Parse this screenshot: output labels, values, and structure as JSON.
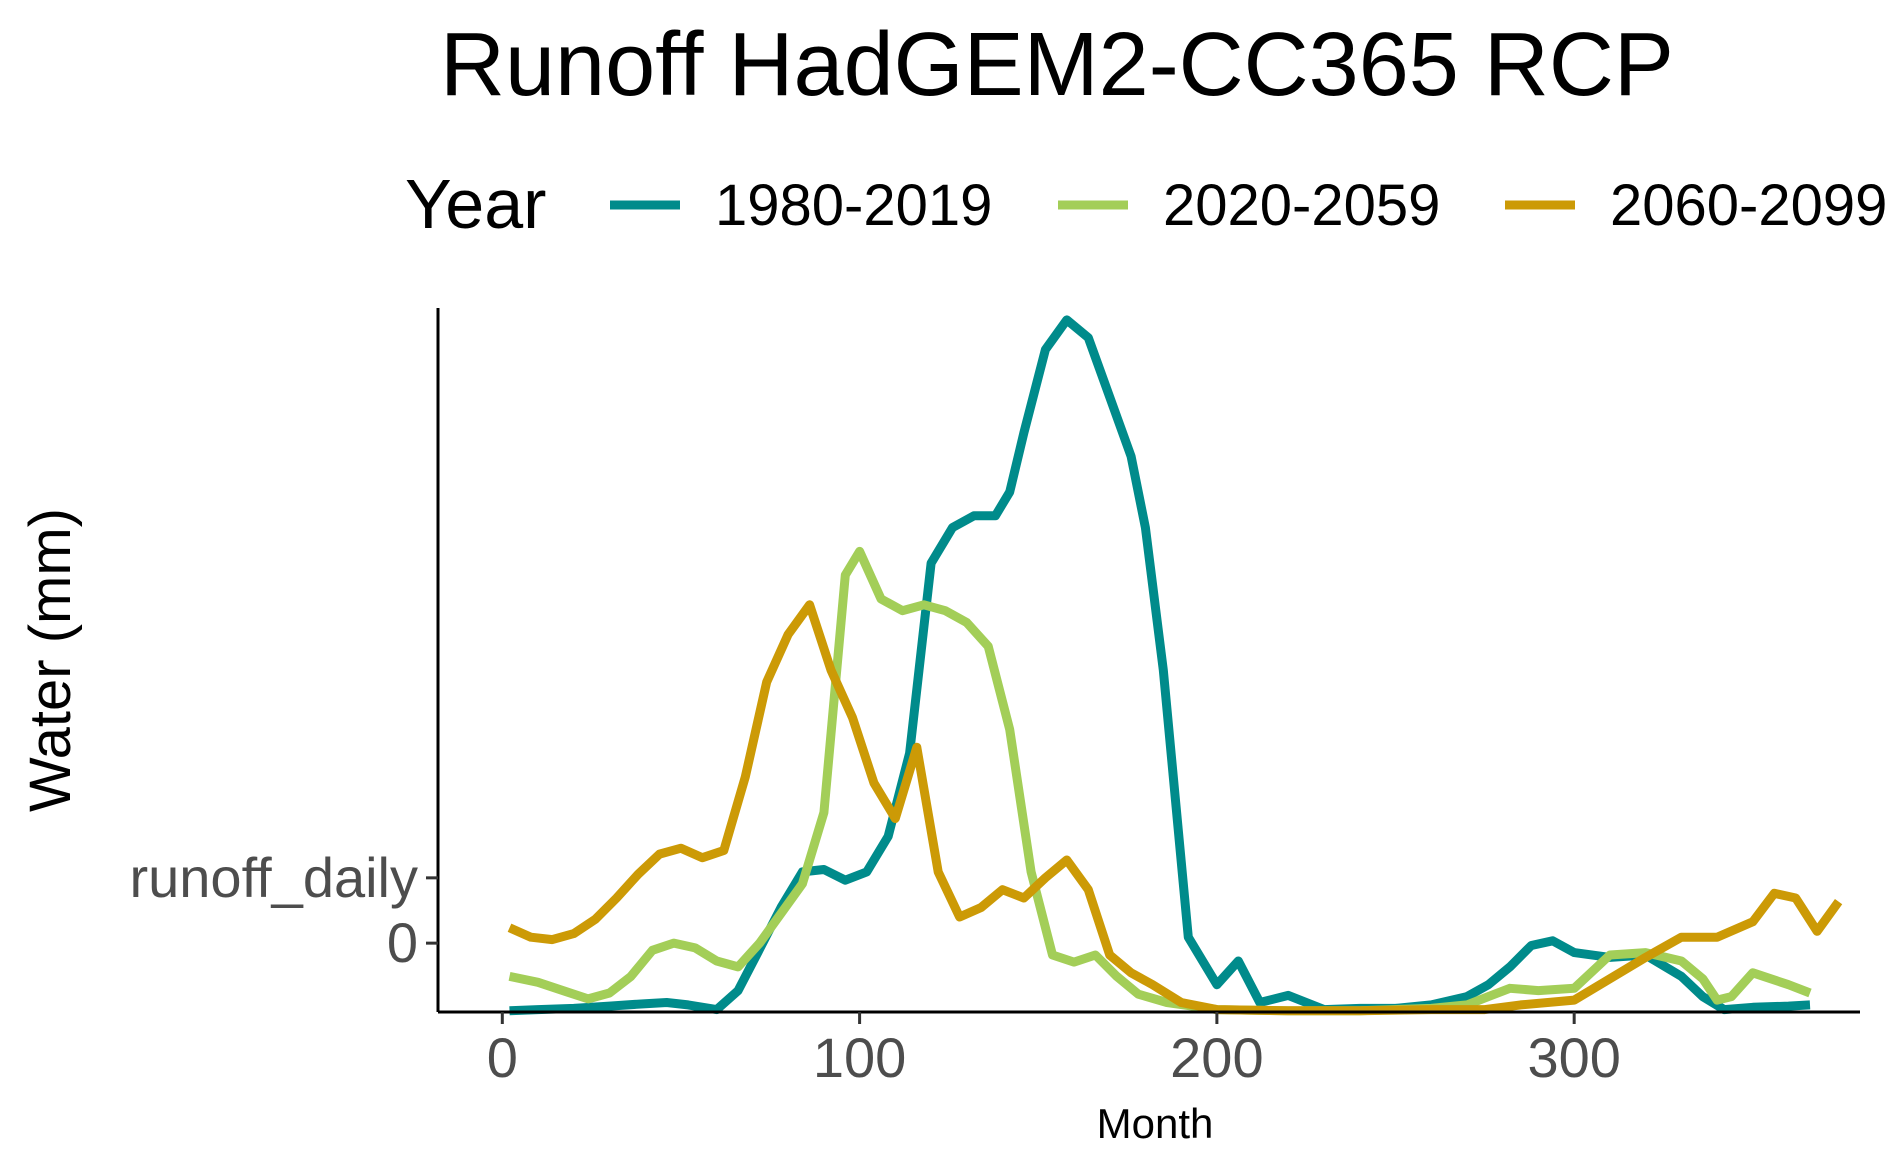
{
  "chart_data": {
    "type": "line",
    "title": "Runoff HadGEM2-CC365 RCP",
    "xlabel": "Month",
    "ylabel": "Water (mm)",
    "legend": {
      "title": "Year",
      "position": "top"
    },
    "xlim": [
      -18,
      380
    ],
    "x_ticks": [
      0,
      100,
      200,
      300
    ],
    "ylim": [
      -0.58,
      5.35
    ],
    "y_ticks": [
      {
        "value": 0,
        "label": "0"
      },
      {
        "value": 0.55,
        "label": "runoff_daily"
      }
    ],
    "grid": false,
    "series": [
      {
        "name": "1980-2019",
        "color": "#008B8B",
        "x": [
          2,
          10,
          20,
          30,
          40,
          46,
          52,
          60,
          66,
          72,
          78,
          84,
          90,
          96,
          102,
          108,
          114,
          120,
          126,
          132,
          138,
          142,
          146,
          152,
          158,
          164,
          170,
          176,
          180,
          185,
          192,
          200,
          206,
          212,
          220,
          230,
          240,
          250,
          260,
          270,
          276,
          282,
          288,
          294,
          300,
          310,
          320,
          330,
          336,
          342,
          350,
          360,
          366
        ],
        "y": [
          -0.57,
          -0.56,
          -0.55,
          -0.53,
          -0.51,
          -0.5,
          -0.52,
          -0.56,
          -0.4,
          -0.05,
          0.3,
          0.6,
          0.62,
          0.53,
          0.6,
          0.9,
          1.6,
          3.2,
          3.5,
          3.6,
          3.6,
          3.8,
          4.3,
          5.0,
          5.25,
          5.1,
          4.6,
          4.1,
          3.5,
          2.3,
          0.05,
          -0.35,
          -0.15,
          -0.5,
          -0.44,
          -0.56,
          -0.55,
          -0.55,
          -0.52,
          -0.45,
          -0.35,
          -0.2,
          -0.02,
          0.02,
          -0.08,
          -0.12,
          -0.1,
          -0.28,
          -0.45,
          -0.56,
          -0.54,
          -0.53,
          -0.52
        ]
      },
      {
        "name": "2020-2059",
        "color": "#A3CE58",
        "x": [
          2,
          10,
          18,
          24,
          30,
          36,
          42,
          48,
          54,
          60,
          66,
          72,
          78,
          84,
          90,
          96,
          100,
          106,
          112,
          118,
          124,
          130,
          136,
          142,
          148,
          154,
          160,
          166,
          172,
          178,
          186,
          200,
          220,
          240,
          260,
          270,
          276,
          282,
          290,
          300,
          310,
          320,
          330,
          336,
          340,
          344,
          350,
          360,
          366
        ],
        "y": [
          -0.28,
          -0.33,
          -0.41,
          -0.47,
          -0.42,
          -0.28,
          -0.06,
          0.0,
          -0.04,
          -0.15,
          -0.2,
          0.0,
          0.25,
          0.5,
          1.1,
          3.1,
          3.3,
          2.9,
          2.8,
          2.85,
          2.8,
          2.7,
          2.5,
          1.8,
          0.6,
          -0.1,
          -0.16,
          -0.1,
          -0.28,
          -0.43,
          -0.5,
          -0.56,
          -0.57,
          -0.57,
          -0.55,
          -0.52,
          -0.45,
          -0.38,
          -0.4,
          -0.38,
          -0.1,
          -0.08,
          -0.15,
          -0.3,
          -0.48,
          -0.45,
          -0.25,
          -0.35,
          -0.42
        ]
      },
      {
        "name": "2060-2099",
        "color": "#CC9A06",
        "x": [
          2,
          8,
          14,
          20,
          26,
          32,
          38,
          44,
          50,
          56,
          62,
          68,
          74,
          80,
          86,
          92,
          98,
          104,
          110,
          116,
          122,
          128,
          134,
          140,
          146,
          152,
          158,
          164,
          170,
          176,
          182,
          190,
          200,
          220,
          240,
          260,
          275,
          285,
          300,
          310,
          320,
          330,
          340,
          350,
          356,
          362,
          368,
          374
        ],
        "y": [
          0.13,
          0.05,
          0.03,
          0.08,
          0.2,
          0.38,
          0.58,
          0.75,
          0.8,
          0.72,
          0.78,
          1.4,
          2.2,
          2.6,
          2.85,
          2.3,
          1.9,
          1.35,
          1.05,
          1.65,
          0.6,
          0.22,
          0.3,
          0.45,
          0.38,
          0.55,
          0.7,
          0.45,
          -0.1,
          -0.25,
          -0.35,
          -0.5,
          -0.56,
          -0.57,
          -0.57,
          -0.56,
          -0.56,
          -0.52,
          -0.48,
          -0.3,
          -0.12,
          0.05,
          0.05,
          0.18,
          0.42,
          0.38,
          0.1,
          0.35
        ]
      }
    ]
  }
}
